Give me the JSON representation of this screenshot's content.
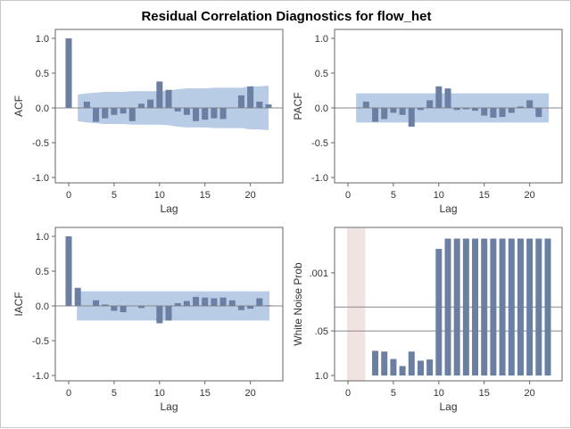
{
  "title": "Residual Correlation Diagnostics for flow_het",
  "colors": {
    "bar": "#6b7fa3",
    "band": "#b8cce6",
    "frame": "#666666",
    "wn_shade": "#f0e4e2",
    "ref_line": "#888888"
  },
  "chart_data": [
    {
      "id": "acf",
      "type": "bar",
      "ylabel": "ACF",
      "xlabel": "Lag",
      "xlim": [
        -1,
        23
      ],
      "ylim": [
        -1,
        1
      ],
      "xticks": [
        "0",
        "5",
        "10",
        "15",
        "20"
      ],
      "yticks": [
        "1.0",
        "0.5",
        "0.0",
        "-0.5",
        "-1.0"
      ],
      "lags": [
        0,
        1,
        2,
        3,
        4,
        5,
        6,
        7,
        8,
        9,
        10,
        11,
        12,
        13,
        14,
        15,
        16,
        17,
        18,
        19,
        20,
        21,
        22
      ],
      "values": [
        1.0,
        0.0,
        0.09,
        -0.2,
        -0.15,
        -0.1,
        -0.08,
        -0.19,
        0.06,
        0.12,
        0.38,
        0.26,
        -0.05,
        -0.1,
        -0.19,
        -0.17,
        -0.15,
        -0.16,
        0.0,
        0.18,
        0.31,
        0.09,
        0.05
      ],
      "band_upper": [
        0.0,
        0.19,
        0.21,
        0.22,
        0.23,
        0.23,
        0.23,
        0.24,
        0.24,
        0.24,
        0.24,
        0.25,
        0.27,
        0.28,
        0.28,
        0.28,
        0.29,
        0.29,
        0.29,
        0.29,
        0.31,
        0.31,
        0.32
      ],
      "band_lower": [
        0.0,
        -0.19,
        -0.21,
        -0.22,
        -0.23,
        -0.23,
        -0.23,
        -0.24,
        -0.24,
        -0.24,
        -0.24,
        -0.25,
        -0.27,
        -0.28,
        -0.28,
        -0.28,
        -0.29,
        -0.29,
        -0.29,
        -0.29,
        -0.31,
        -0.31,
        -0.32
      ]
    },
    {
      "id": "pacf",
      "type": "bar",
      "ylabel": "PACF",
      "xlabel": "Lag",
      "xlim": [
        -1,
        23
      ],
      "ylim": [
        -1,
        1
      ],
      "xticks": [
        "0",
        "5",
        "10",
        "15",
        "20"
      ],
      "yticks": [
        "1.0",
        "0.5",
        "0.0",
        "-0.5",
        "-1.0"
      ],
      "lags": [
        1,
        2,
        3,
        4,
        5,
        6,
        7,
        8,
        9,
        10,
        11,
        12,
        13,
        14,
        15,
        16,
        17,
        18,
        19,
        20,
        21,
        22
      ],
      "values": [
        0.0,
        0.09,
        -0.2,
        -0.16,
        -0.07,
        -0.1,
        -0.27,
        -0.03,
        0.11,
        0.31,
        0.28,
        -0.03,
        -0.02,
        -0.04,
        -0.11,
        -0.14,
        -0.13,
        -0.07,
        0.02,
        0.11,
        -0.13,
        0.0
      ],
      "band": 0.21
    },
    {
      "id": "iacf",
      "type": "bar",
      "ylabel": "IACF",
      "xlabel": "Lag",
      "xlim": [
        -1,
        23
      ],
      "ylim": [
        -1,
        1
      ],
      "xticks": [
        "0",
        "5",
        "10",
        "15",
        "20"
      ],
      "yticks": [
        "1.0",
        "0.5",
        "0.0",
        "-0.5",
        "-1.0"
      ],
      "lags": [
        0,
        1,
        2,
        3,
        4,
        5,
        6,
        7,
        8,
        9,
        10,
        11,
        12,
        13,
        14,
        15,
        16,
        17,
        18,
        19,
        20,
        21,
        22
      ],
      "values": [
        1.0,
        0.26,
        0.0,
        0.08,
        0.02,
        -0.07,
        -0.09,
        0.0,
        -0.03,
        0.0,
        -0.25,
        -0.21,
        0.04,
        0.07,
        0.13,
        0.12,
        0.11,
        0.12,
        0.08,
        -0.06,
        -0.04,
        0.11,
        0.01
      ],
      "band": 0.21
    },
    {
      "id": "white_noise",
      "type": "bar",
      "ylabel": "White Noise Prob",
      "xlabel": "Lag",
      "xlim": [
        -1,
        23
      ],
      "yscale": "log-probability",
      "xticks": [
        "0",
        "5",
        "10",
        "15",
        "20"
      ],
      "yticks": [
        ".001",
        ".05",
        "1.0"
      ],
      "shaded_lags": [
        0,
        1
      ],
      "lags": [
        3,
        4,
        5,
        6,
        7,
        8,
        9,
        10,
        11,
        12,
        13,
        14,
        15,
        16,
        17,
        18,
        19,
        20,
        21,
        22
      ],
      "values": [
        0.19,
        0.2,
        0.33,
        0.53,
        0.2,
        0.37,
        0.34,
        0.0002,
        0.0001,
        0.0001,
        0.0001,
        0.0001,
        0.0001,
        0.0001,
        0.0001,
        0.0001,
        0.0001,
        0.0001,
        0.0001,
        0.0001
      ]
    }
  ]
}
